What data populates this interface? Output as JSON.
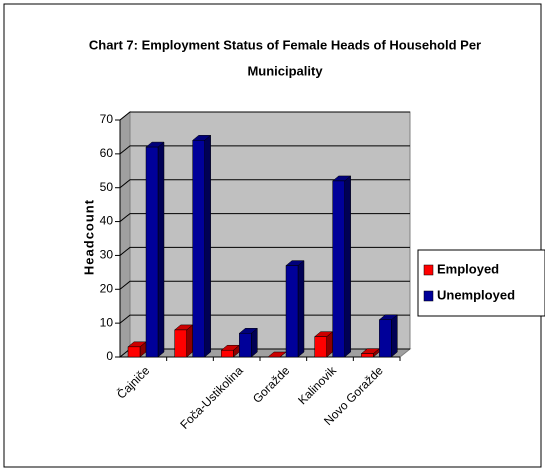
{
  "chart_data": {
    "type": "bar3d",
    "title": [
      "Chart 7: Employment Status of Female Heads of Household Per",
      "Municipality"
    ],
    "y_label": "Headcount",
    "categories": [
      "Čajniče",
      null,
      "Foča-Ustikolina",
      "Goražde",
      "Kalinovik",
      "Novo Goražde"
    ],
    "series": [
      {
        "name": "Employed",
        "color": "#ff0000",
        "values": [
          3,
          8,
          2,
          0,
          6,
          1
        ]
      },
      {
        "name": "Unemployed",
        "color": "#000099",
        "values": [
          62,
          64,
          7,
          27,
          52,
          11
        ]
      }
    ],
    "ylim": [
      0,
      70
    ],
    "yticks": [
      0,
      10,
      20,
      30,
      40,
      50,
      60,
      70
    ],
    "grid": true,
    "legend": "right"
  }
}
